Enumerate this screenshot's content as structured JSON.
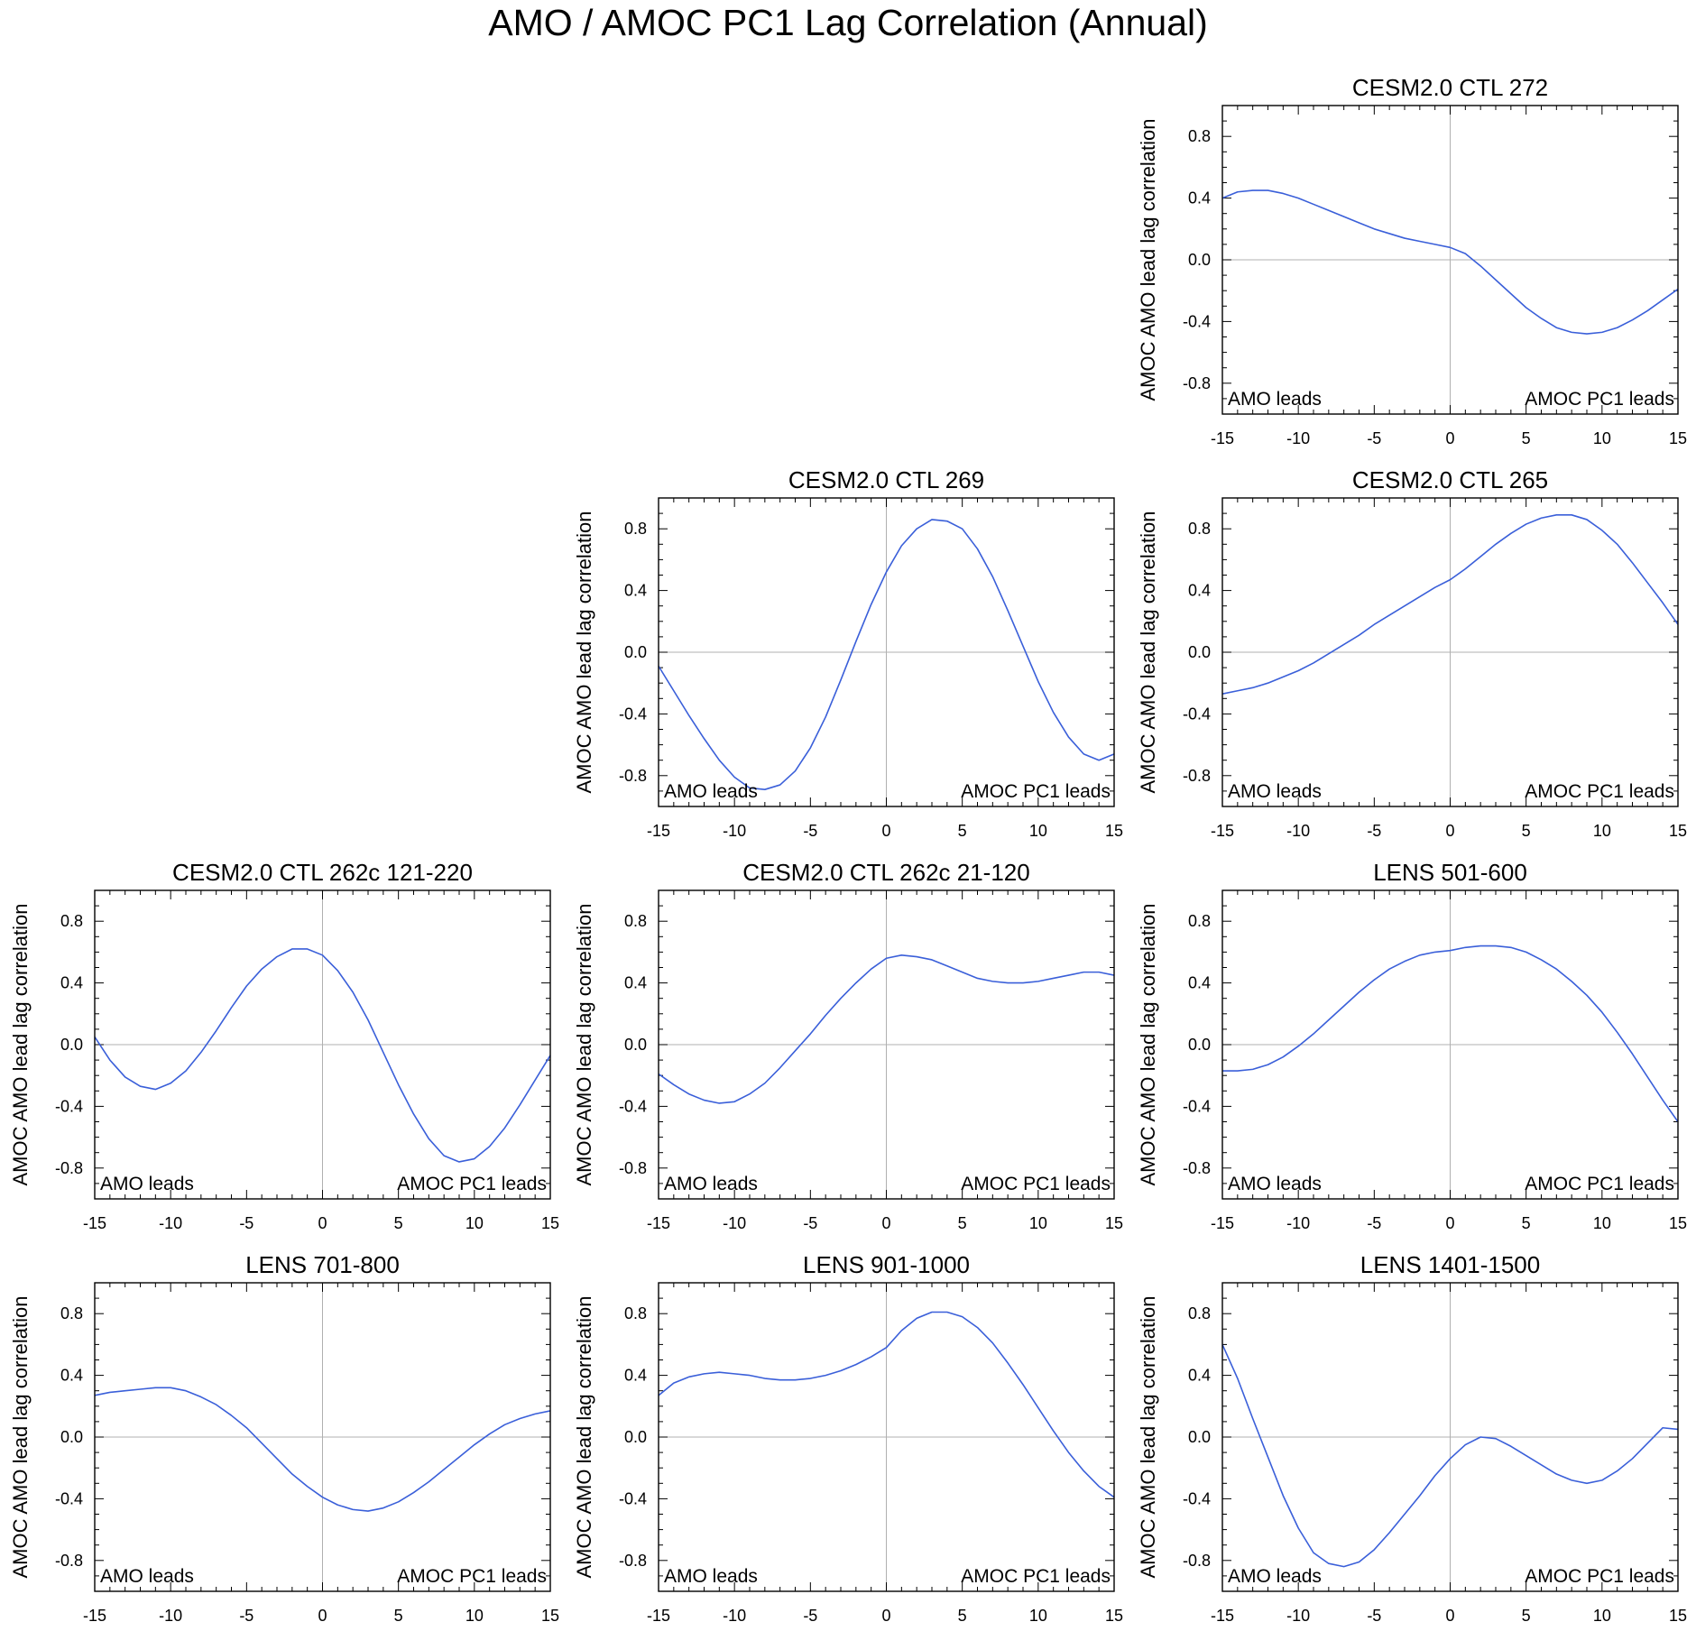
{
  "title": "AMO / AMOC PC1 Lag Correlation (Annual)",
  "common": {
    "ylabel": "AMOC AMO lead lag correlation",
    "left_note": "AMO leads",
    "right_note": "AMOC PC1 leads",
    "xlim": [
      -15,
      15
    ],
    "ylim": [
      -1,
      1
    ],
    "xticks": [
      -15,
      -10,
      -5,
      0,
      5,
      10,
      15
    ],
    "yticks": [
      -0.8,
      -0.4,
      0.0,
      0.4,
      0.8
    ],
    "ytick_labels": [
      "-0.8",
      "-0.4",
      "0.0",
      "0.4",
      "0.8"
    ],
    "line_color": "#3a5fd9",
    "zero_line_color": "#b0b0b0"
  },
  "chart_data": [
    {
      "type": "line",
      "title": "CESM2.0 CTL 272",
      "row": 0,
      "col": 2,
      "x": [
        -15,
        -14,
        -13,
        -12,
        -11,
        -10,
        -9,
        -8,
        -7,
        -6,
        -5,
        -4,
        -3,
        -2,
        -1,
        0,
        1,
        2,
        3,
        4,
        5,
        6,
        7,
        8,
        9,
        10,
        11,
        12,
        13,
        14,
        15
      ],
      "y": [
        0.4,
        0.44,
        0.45,
        0.45,
        0.43,
        0.4,
        0.36,
        0.32,
        0.28,
        0.24,
        0.2,
        0.17,
        0.14,
        0.12,
        0.1,
        0.08,
        0.04,
        -0.04,
        -0.13,
        -0.22,
        -0.31,
        -0.38,
        -0.44,
        -0.47,
        -0.48,
        -0.47,
        -0.44,
        -0.39,
        -0.33,
        -0.26,
        -0.19
      ]
    },
    {
      "type": "line",
      "title": "CESM2.0 CTL 269",
      "row": 1,
      "col": 1,
      "x": [
        -15,
        -14,
        -13,
        -12,
        -11,
        -10,
        -9,
        -8,
        -7,
        -6,
        -5,
        -4,
        -3,
        -2,
        -1,
        0,
        1,
        2,
        3,
        4,
        5,
        6,
        7,
        8,
        9,
        10,
        11,
        12,
        13,
        14,
        15
      ],
      "y": [
        -0.09,
        -0.25,
        -0.41,
        -0.56,
        -0.7,
        -0.81,
        -0.88,
        -0.89,
        -0.86,
        -0.77,
        -0.62,
        -0.42,
        -0.18,
        0.07,
        0.31,
        0.52,
        0.69,
        0.8,
        0.86,
        0.85,
        0.8,
        0.67,
        0.49,
        0.27,
        0.04,
        -0.19,
        -0.39,
        -0.55,
        -0.66,
        -0.7,
        -0.66
      ]
    },
    {
      "type": "line",
      "title": "CESM2.0 CTL 265",
      "row": 1,
      "col": 2,
      "x": [
        -15,
        -14,
        -13,
        -12,
        -11,
        -10,
        -9,
        -8,
        -7,
        -6,
        -5,
        -4,
        -3,
        -2,
        -1,
        0,
        1,
        2,
        3,
        4,
        5,
        6,
        7,
        8,
        9,
        10,
        11,
        12,
        13,
        14,
        15
      ],
      "y": [
        -0.27,
        -0.25,
        -0.23,
        -0.2,
        -0.16,
        -0.12,
        -0.07,
        -0.01,
        0.05,
        0.11,
        0.18,
        0.24,
        0.3,
        0.36,
        0.42,
        0.47,
        0.54,
        0.62,
        0.7,
        0.77,
        0.83,
        0.87,
        0.89,
        0.89,
        0.86,
        0.79,
        0.7,
        0.58,
        0.45,
        0.32,
        0.18
      ]
    },
    {
      "type": "line",
      "title": "CESM2.0 CTL 262c 121-220",
      "row": 2,
      "col": 0,
      "x": [
        -15,
        -14,
        -13,
        -12,
        -11,
        -10,
        -9,
        -8,
        -7,
        -6,
        -5,
        -4,
        -3,
        -2,
        -1,
        0,
        1,
        2,
        3,
        4,
        5,
        6,
        7,
        8,
        9,
        10,
        11,
        12,
        13,
        14,
        15
      ],
      "y": [
        0.05,
        -0.1,
        -0.21,
        -0.27,
        -0.29,
        -0.25,
        -0.17,
        -0.05,
        0.09,
        0.24,
        0.38,
        0.49,
        0.57,
        0.62,
        0.62,
        0.58,
        0.48,
        0.34,
        0.16,
        -0.05,
        -0.26,
        -0.45,
        -0.61,
        -0.72,
        -0.76,
        -0.74,
        -0.66,
        -0.54,
        -0.39,
        -0.23,
        -0.07
      ]
    },
    {
      "type": "line",
      "title": "CESM2.0 CTL 262c 21-120",
      "row": 2,
      "col": 1,
      "x": [
        -15,
        -14,
        -13,
        -12,
        -11,
        -10,
        -9,
        -8,
        -7,
        -6,
        -5,
        -4,
        -3,
        -2,
        -1,
        0,
        1,
        2,
        3,
        4,
        5,
        6,
        7,
        8,
        9,
        10,
        11,
        12,
        13,
        14,
        15
      ],
      "y": [
        -0.19,
        -0.26,
        -0.32,
        -0.36,
        -0.38,
        -0.37,
        -0.32,
        -0.25,
        -0.15,
        -0.04,
        0.07,
        0.19,
        0.3,
        0.4,
        0.49,
        0.56,
        0.58,
        0.57,
        0.55,
        0.51,
        0.47,
        0.43,
        0.41,
        0.4,
        0.4,
        0.41,
        0.43,
        0.45,
        0.47,
        0.47,
        0.45
      ]
    },
    {
      "type": "line",
      "title": "LENS 501-600",
      "row": 2,
      "col": 2,
      "x": [
        -15,
        -14,
        -13,
        -12,
        -11,
        -10,
        -9,
        -8,
        -7,
        -6,
        -5,
        -4,
        -3,
        -2,
        -1,
        0,
        1,
        2,
        3,
        4,
        5,
        6,
        7,
        8,
        9,
        10,
        11,
        12,
        13,
        14,
        15
      ],
      "y": [
        -0.17,
        -0.17,
        -0.16,
        -0.13,
        -0.08,
        -0.01,
        0.07,
        0.16,
        0.25,
        0.34,
        0.42,
        0.49,
        0.54,
        0.58,
        0.6,
        0.61,
        0.63,
        0.64,
        0.64,
        0.63,
        0.6,
        0.55,
        0.49,
        0.41,
        0.32,
        0.21,
        0.08,
        -0.06,
        -0.21,
        -0.36,
        -0.5
      ]
    },
    {
      "type": "line",
      "title": "LENS 701-800",
      "row": 3,
      "col": 0,
      "x": [
        -15,
        -14,
        -13,
        -12,
        -11,
        -10,
        -9,
        -8,
        -7,
        -6,
        -5,
        -4,
        -3,
        -2,
        -1,
        0,
        1,
        2,
        3,
        4,
        5,
        6,
        7,
        8,
        9,
        10,
        11,
        12,
        13,
        14,
        15
      ],
      "y": [
        0.27,
        0.29,
        0.3,
        0.31,
        0.32,
        0.32,
        0.3,
        0.26,
        0.21,
        0.14,
        0.06,
        -0.04,
        -0.14,
        -0.24,
        -0.32,
        -0.39,
        -0.44,
        -0.47,
        -0.48,
        -0.46,
        -0.42,
        -0.36,
        -0.29,
        -0.21,
        -0.13,
        -0.05,
        0.02,
        0.08,
        0.12,
        0.15,
        0.17
      ]
    },
    {
      "type": "line",
      "title": "LENS 901-1000",
      "row": 3,
      "col": 1,
      "x": [
        -15,
        -14,
        -13,
        -12,
        -11,
        -10,
        -9,
        -8,
        -7,
        -6,
        -5,
        -4,
        -3,
        -2,
        -1,
        0,
        1,
        2,
        3,
        4,
        5,
        6,
        7,
        8,
        9,
        10,
        11,
        12,
        13,
        14,
        15
      ],
      "y": [
        0.27,
        0.35,
        0.39,
        0.41,
        0.42,
        0.41,
        0.4,
        0.38,
        0.37,
        0.37,
        0.38,
        0.4,
        0.43,
        0.47,
        0.52,
        0.58,
        0.69,
        0.77,
        0.81,
        0.81,
        0.78,
        0.71,
        0.61,
        0.48,
        0.34,
        0.19,
        0.04,
        -0.1,
        -0.22,
        -0.32,
        -0.39
      ]
    },
    {
      "type": "line",
      "title": "LENS 1401-1500",
      "row": 3,
      "col": 2,
      "x": [
        -15,
        -14,
        -13,
        -12,
        -11,
        -10,
        -9,
        -8,
        -7,
        -6,
        -5,
        -4,
        -3,
        -2,
        -1,
        0,
        1,
        2,
        3,
        4,
        5,
        6,
        7,
        8,
        9,
        10,
        11,
        12,
        13,
        14,
        15
      ],
      "y": [
        0.6,
        0.38,
        0.12,
        -0.13,
        -0.38,
        -0.59,
        -0.75,
        -0.82,
        -0.84,
        -0.81,
        -0.73,
        -0.62,
        -0.5,
        -0.38,
        -0.25,
        -0.14,
        -0.05,
        0.0,
        -0.01,
        -0.06,
        -0.12,
        -0.18,
        -0.24,
        -0.28,
        -0.3,
        -0.28,
        -0.22,
        -0.14,
        -0.04,
        0.06,
        0.05
      ]
    }
  ]
}
